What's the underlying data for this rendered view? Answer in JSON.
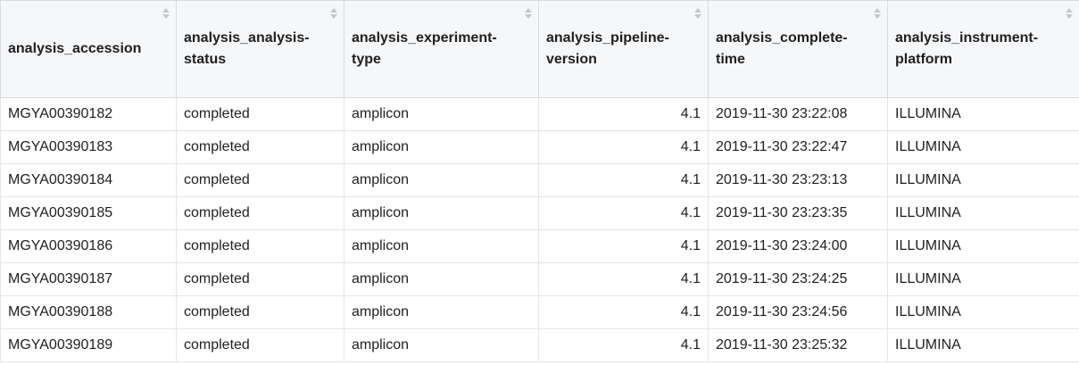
{
  "columns": [
    {
      "label": "analysis_accession",
      "align": "left"
    },
    {
      "label": "analysis_analysis-status",
      "align": "left"
    },
    {
      "label": "analysis_experiment-type",
      "align": "left"
    },
    {
      "label": "analysis_pipeline-version",
      "align": "right"
    },
    {
      "label": "analysis_complete-time",
      "align": "left"
    },
    {
      "label": "analysis_instrument-platform",
      "align": "left"
    }
  ],
  "rows": [
    [
      "MGYA00390182",
      "completed",
      "amplicon",
      "4.1",
      "2019-11-30 23:22:08",
      "ILLUMINA"
    ],
    [
      "MGYA00390183",
      "completed",
      "amplicon",
      "4.1",
      "2019-11-30 23:22:47",
      "ILLUMINA"
    ],
    [
      "MGYA00390184",
      "completed",
      "amplicon",
      "4.1",
      "2019-11-30 23:23:13",
      "ILLUMINA"
    ],
    [
      "MGYA00390185",
      "completed",
      "amplicon",
      "4.1",
      "2019-11-30 23:23:35",
      "ILLUMINA"
    ],
    [
      "MGYA00390186",
      "completed",
      "amplicon",
      "4.1",
      "2019-11-30 23:24:00",
      "ILLUMINA"
    ],
    [
      "MGYA00390187",
      "completed",
      "amplicon",
      "4.1",
      "2019-11-30 23:24:25",
      "ILLUMINA"
    ],
    [
      "MGYA00390188",
      "completed",
      "amplicon",
      "4.1",
      "2019-11-30 23:24:56",
      "ILLUMINA"
    ],
    [
      "MGYA00390189",
      "completed",
      "amplicon",
      "4.1",
      "2019-11-30 23:25:32",
      "ILLUMINA"
    ]
  ],
  "icons": {
    "sort": "sort-up-down-icon"
  },
  "colors": {
    "header_bg": "#f6f7f9",
    "border": "#d9dce1",
    "sort_icon": "#c4c8cd"
  }
}
